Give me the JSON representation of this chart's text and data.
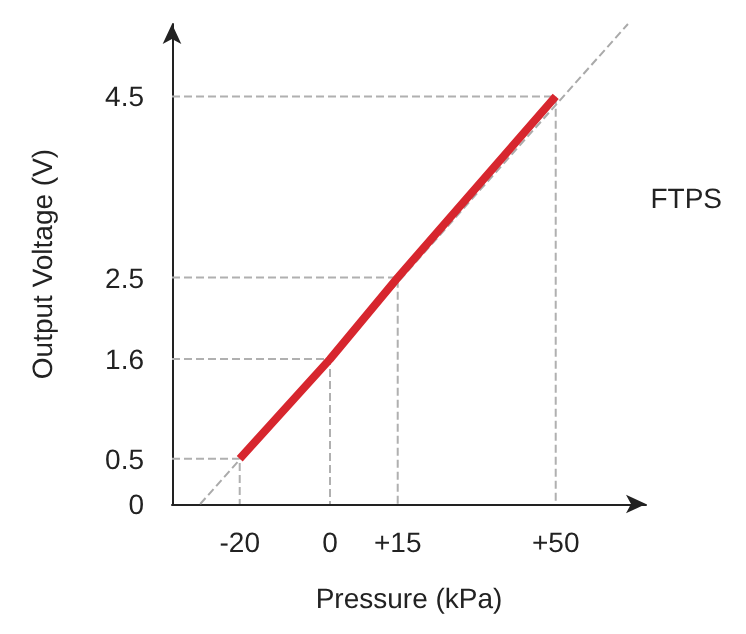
{
  "chart_data": {
    "type": "line",
    "xlabel": "Pressure (kPa)",
    "ylabel": "Output Voltage (V)",
    "annotations": [
      "FTPS"
    ],
    "xlim": [
      -35,
      70
    ],
    "ylim": [
      0,
      5.3
    ],
    "xticks": [
      -20,
      0,
      {
        "value": 15,
        "label": "+15"
      },
      {
        "value": 50,
        "label": "+50"
      }
    ],
    "yticks": [
      0,
      0.5,
      1.6,
      2.5,
      4.5
    ],
    "grid": false,
    "marker": "none",
    "series": [
      {
        "color": "#d7262e",
        "x": [
          -20,
          0,
          15,
          50
        ],
        "values": [
          0.5,
          1.6,
          2.5,
          4.5
        ],
        "line_style": "solid"
      },
      {
        "color": "#aaaaaa",
        "x": [
          -28.75,
          66
        ],
        "values": [
          0,
          5.3
        ],
        "line_style": "dashed"
      },
      {
        "color": "#b0b0b0",
        "x": [
          -35,
          -20,
          -20
        ],
        "values": [
          0.5,
          0.5,
          0
        ],
        "line_style": "dashed"
      },
      {
        "color": "#b0b0b0",
        "x": [
          -35,
          0,
          0
        ],
        "values": [
          1.6,
          1.6,
          0
        ],
        "line_style": "dashed"
      },
      {
        "color": "#b0b0b0",
        "x": [
          -35,
          15,
          15
        ],
        "values": [
          2.5,
          2.5,
          0
        ],
        "line_style": "dashed"
      },
      {
        "color": "#b0b0b0",
        "x": [
          -35,
          50,
          50
        ],
        "values": [
          4.5,
          4.5,
          0
        ],
        "line_style": "dashed"
      }
    ]
  }
}
